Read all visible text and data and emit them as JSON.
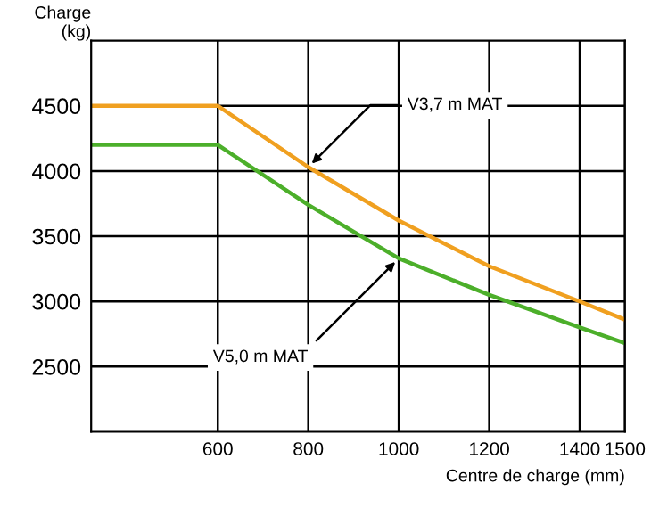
{
  "chart_data": {
    "type": "line",
    "xlabel": "Centre de charge (mm)",
    "ylabel": "Charge\n(kg)",
    "series": [
      {
        "color": "#f0a020",
        "x": [
          320,
          600,
          800,
          1000,
          1200,
          1400,
          1500
        ],
        "values": [
          4500,
          4500,
          4030,
          3620,
          3270,
          3000,
          2860
        ]
      },
      {
        "color": "#4caf2a",
        "x": [
          320,
          600,
          800,
          1000,
          1200,
          1400,
          1500
        ],
        "values": [
          4200,
          4200,
          3740,
          3330,
          3050,
          2800,
          2680
        ]
      }
    ],
    "annotations": [
      {
        "text": "V3,7 m MAT",
        "x": 800,
        "y": 4030
      },
      {
        "text": "V5,0 m MAT",
        "x": 1000,
        "y": 3330
      }
    ],
    "xlim": [
      320,
      1500
    ],
    "ylim": [
      2000,
      5000
    ],
    "xticks": [
      600,
      800,
      1000,
      1200,
      1400,
      1500
    ],
    "yticks": [
      2500,
      3000,
      3500,
      4000,
      4500
    ],
    "grid": true,
    "legend": false
  }
}
